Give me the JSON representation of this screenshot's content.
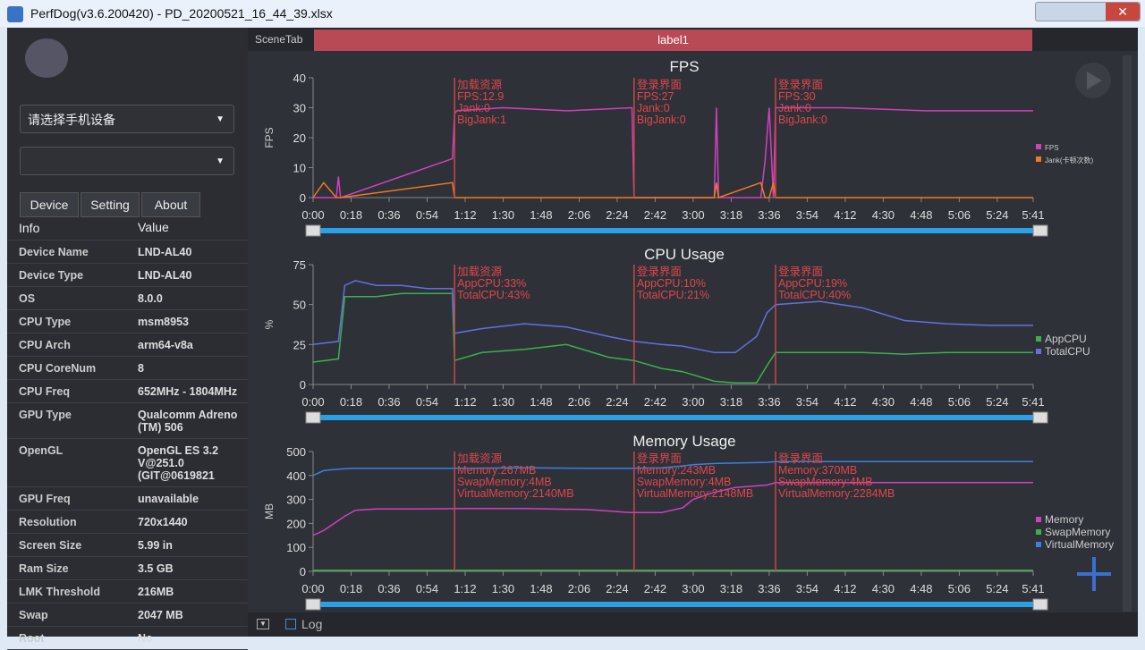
{
  "window": {
    "title": "PerfDog(v3.6.200420) - PD_20200521_16_44_39.xlsx"
  },
  "sidebar": {
    "device_select": "请选择手机设备",
    "tabs": [
      "Device",
      "Setting",
      "About"
    ],
    "table": {
      "header": [
        "Info",
        "Value"
      ],
      "rows": [
        [
          "Device Name",
          "LND-AL40"
        ],
        [
          "Device Type",
          "LND-AL40"
        ],
        [
          "OS",
          "8.0.0"
        ],
        [
          "CPU Type",
          "msm8953"
        ],
        [
          "CPU Arch",
          "arm64-v8a"
        ],
        [
          "CPU CoreNum",
          "8"
        ],
        [
          "CPU Freq",
          "652MHz - 1804MHz"
        ],
        [
          "GPU Type",
          "Qualcomm Adreno (TM) 506"
        ],
        [
          "OpenGL",
          "OpenGL ES 3.2 V@251.0 (GIT@0619821"
        ],
        [
          "GPU Freq",
          "unavailable"
        ],
        [
          "Resolution",
          "720x1440"
        ],
        [
          "Screen Size",
          "5.99 in"
        ],
        [
          "Ram Size",
          "3.5 GB"
        ],
        [
          "LMK Threshold",
          "216MB"
        ],
        [
          "Swap",
          "2047 MB"
        ],
        [
          "Root",
          "No"
        ]
      ]
    }
  },
  "toolbar": {
    "scene_tab": "SceneTab",
    "label": "label1"
  },
  "footer": {
    "log": "Log"
  },
  "charts": [
    {
      "type": "line",
      "title": "FPS",
      "ylabel": "FPS",
      "xlim": [
        0,
        341
      ],
      "ylim": [
        0,
        40
      ],
      "yticks": [
        0,
        10,
        20,
        30,
        40
      ],
      "xticks": [
        {
          "value": 0,
          "label": "0:00"
        },
        {
          "value": 18,
          "label": "0:18"
        },
        {
          "value": 36,
          "label": "0:36"
        },
        {
          "value": 54,
          "label": "0:54"
        },
        {
          "value": 72,
          "label": "1:12"
        },
        {
          "value": 90,
          "label": "1:30"
        },
        {
          "value": 108,
          "label": "1:48"
        },
        {
          "value": 126,
          "label": "2:06"
        },
        {
          "value": 144,
          "label": "2:24"
        },
        {
          "value": 162,
          "label": "2:42"
        },
        {
          "value": 180,
          "label": "3:00"
        },
        {
          "value": 198,
          "label": "3:18"
        },
        {
          "value": 216,
          "label": "3:36"
        },
        {
          "value": 234,
          "label": "3:54"
        },
        {
          "value": 252,
          "label": "4:12"
        },
        {
          "value": 270,
          "label": "4:30"
        },
        {
          "value": 288,
          "label": "4:48"
        },
        {
          "value": 306,
          "label": "5:06"
        },
        {
          "value": 324,
          "label": "5:24"
        },
        {
          "value": 341,
          "label": "5:41"
        }
      ],
      "x": [
        0,
        5,
        11,
        12,
        13,
        66,
        67,
        68,
        90,
        120,
        151,
        152,
        170,
        190,
        191,
        192,
        212,
        214,
        216,
        218,
        219,
        250,
        290,
        341
      ],
      "series": [
        {
          "name": "FPS",
          "color": "#d040c0",
          "values": [
            0,
            0,
            0,
            7,
            0,
            13,
            28,
            29,
            30,
            29,
            30,
            0,
            0,
            0,
            30,
            0,
            0,
            12,
            30,
            0,
            30,
            30,
            29,
            29
          ]
        },
        {
          "name": "Jank(卡顿次数)",
          "color": "#f07a20",
          "values": [
            0,
            5,
            0,
            0,
            0,
            5,
            0,
            0,
            0,
            0,
            0,
            0,
            0,
            0,
            5,
            0,
            5,
            0,
            0,
            5,
            0,
            0,
            0,
            0
          ]
        }
      ],
      "markers": [
        {
          "x": 67,
          "lines": [
            "加载资源",
            "FPS:12.9",
            "Jank:0",
            "BigJank:1"
          ]
        },
        {
          "x": 152,
          "lines": [
            "登录界面",
            "FPS:27",
            "Jank:0",
            "BigJank:0"
          ]
        },
        {
          "x": 219,
          "lines": [
            "登录界面",
            "FPS:30",
            "Jank:0",
            "BigJank:0"
          ]
        }
      ]
    },
    {
      "type": "line",
      "title": "CPU Usage",
      "ylabel": "%",
      "xlim": [
        0,
        341
      ],
      "ylim": [
        0,
        75
      ],
      "yticks": [
        0,
        25,
        50,
        75
      ],
      "xticks": [
        {
          "value": 0,
          "label": "0:00"
        },
        {
          "value": 18,
          "label": "0:18"
        },
        {
          "value": 36,
          "label": "0:36"
        },
        {
          "value": 54,
          "label": "0:54"
        },
        {
          "value": 72,
          "label": "1:12"
        },
        {
          "value": 90,
          "label": "1:30"
        },
        {
          "value": 108,
          "label": "1:48"
        },
        {
          "value": 126,
          "label": "2:06"
        },
        {
          "value": 144,
          "label": "2:24"
        },
        {
          "value": 162,
          "label": "2:42"
        },
        {
          "value": 180,
          "label": "3:00"
        },
        {
          "value": 198,
          "label": "3:18"
        },
        {
          "value": 216,
          "label": "3:36"
        },
        {
          "value": 234,
          "label": "3:54"
        },
        {
          "value": 252,
          "label": "4:12"
        },
        {
          "value": 270,
          "label": "4:30"
        },
        {
          "value": 288,
          "label": "4:48"
        },
        {
          "value": 306,
          "label": "5:06"
        },
        {
          "value": 324,
          "label": "5:24"
        },
        {
          "value": 341,
          "label": "5:41"
        }
      ],
      "x": [
        0,
        12,
        15,
        20,
        30,
        42,
        54,
        66,
        67,
        80,
        100,
        120,
        140,
        152,
        165,
        175,
        190,
        200,
        210,
        215,
        219,
        240,
        260,
        280,
        300,
        320,
        341
      ],
      "series": [
        {
          "name": "AppCPU",
          "color": "#3cb04a",
          "values": [
            14,
            16,
            55,
            55,
            55,
            57,
            57,
            57,
            15,
            20,
            22,
            25,
            17,
            15,
            10,
            8,
            2,
            1,
            1,
            12,
            20,
            20,
            20,
            19,
            20,
            20,
            20
          ]
        },
        {
          "name": "TotalCPU",
          "color": "#6470e0",
          "values": [
            25,
            27,
            62,
            65,
            62,
            62,
            60,
            60,
            32,
            35,
            38,
            36,
            30,
            27,
            25,
            24,
            20,
            20,
            30,
            45,
            50,
            52,
            48,
            40,
            38,
            37,
            37
          ]
        }
      ],
      "markers": [
        {
          "x": 67,
          "lines": [
            "加载资源",
            "AppCPU:33%",
            "TotalCPU:43%"
          ]
        },
        {
          "x": 152,
          "lines": [
            "登录界面",
            "AppCPU:10%",
            "TotalCPU:21%"
          ]
        },
        {
          "x": 219,
          "lines": [
            "登录界面",
            "AppCPU:19%",
            "TotalCPU:40%"
          ]
        }
      ]
    },
    {
      "type": "line",
      "title": "Memory Usage",
      "ylabel": "MB",
      "xlim": [
        0,
        341
      ],
      "ylim": [
        0,
        500
      ],
      "yticks": [
        0,
        100,
        200,
        300,
        400,
        500
      ],
      "xticks": [
        {
          "value": 0,
          "label": "0:00"
        },
        {
          "value": 18,
          "label": "0:18"
        },
        {
          "value": 36,
          "label": "0:36"
        },
        {
          "value": 54,
          "label": "0:54"
        },
        {
          "value": 72,
          "label": "1:12"
        },
        {
          "value": 90,
          "label": "1:30"
        },
        {
          "value": 108,
          "label": "1:48"
        },
        {
          "value": 126,
          "label": "2:06"
        },
        {
          "value": 144,
          "label": "2:24"
        },
        {
          "value": 162,
          "label": "2:42"
        },
        {
          "value": 180,
          "label": "3:00"
        },
        {
          "value": 198,
          "label": "3:18"
        },
        {
          "value": 216,
          "label": "3:36"
        },
        {
          "value": 234,
          "label": "3:54"
        },
        {
          "value": 252,
          "label": "4:12"
        },
        {
          "value": 270,
          "label": "4:30"
        },
        {
          "value": 288,
          "label": "4:48"
        },
        {
          "value": 306,
          "label": "5:06"
        },
        {
          "value": 324,
          "label": "5:24"
        },
        {
          "value": 341,
          "label": "5:41"
        }
      ],
      "x": [
        0,
        5,
        10,
        15,
        20,
        30,
        50,
        70,
        100,
        130,
        150,
        165,
        175,
        180,
        190,
        200,
        215,
        219,
        240,
        280,
        341
      ],
      "series": [
        {
          "name": "Memory",
          "color": "#d040c0",
          "values": [
            150,
            170,
            200,
            230,
            255,
            260,
            260,
            262,
            262,
            258,
            245,
            245,
            265,
            300,
            330,
            350,
            360,
            370,
            370,
            370,
            370
          ]
        },
        {
          "name": "SwapMemory",
          "color": "#3cb04a",
          "values": [
            4,
            4,
            4,
            4,
            4,
            4,
            4,
            4,
            4,
            4,
            4,
            4,
            4,
            4,
            4,
            4,
            4,
            4,
            4,
            4,
            4
          ]
        },
        {
          "name": "VirtualMemory",
          "color": "#3a80e0",
          "values": [
            400,
            420,
            425,
            428,
            430,
            430,
            430,
            430,
            432,
            430,
            430,
            432,
            440,
            445,
            450,
            452,
            455,
            458,
            458,
            458,
            458
          ]
        }
      ],
      "markers": [
        {
          "x": 67,
          "lines": [
            "加载资源",
            "Memory:267MB",
            "SwapMemory:4MB",
            "VirtualMemory:2140MB"
          ]
        },
        {
          "x": 152,
          "lines": [
            "登录界面",
            "Memory:243MB",
            "SwapMemory:4MB",
            "VirtualMemory:2148MB"
          ]
        },
        {
          "x": 219,
          "lines": [
            "登录界面",
            "Memory:370MB",
            "SwapMemory:4MB",
            "VirtualMemory:2284MB"
          ]
        }
      ]
    }
  ]
}
